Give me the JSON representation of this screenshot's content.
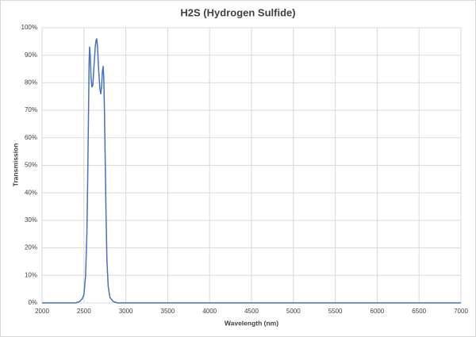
{
  "chart_data": {
    "type": "line",
    "title": "H2S (Hydrogen Sulfide)",
    "xlabel": "Wavelength (nm)",
    "ylabel": "Transmission",
    "x": [
      2000,
      2400,
      2450,
      2480,
      2500,
      2520,
      2535,
      2545,
      2555,
      2562,
      2568,
      2575,
      2585,
      2595,
      2606,
      2620,
      2635,
      2645,
      2653,
      2662,
      2675,
      2690,
      2701,
      2712,
      2720,
      2729,
      2737,
      2745,
      2755,
      2765,
      2775,
      2790,
      2810,
      2850,
      2900,
      7000
    ],
    "series": [
      {
        "name": "H2S",
        "color": "#4472c4",
        "values": [
          0,
          0,
          0.5,
          1.5,
          3,
          10,
          25,
          45,
          70,
          88,
          93,
          90,
          82,
          78.5,
          79,
          86,
          93,
          95.5,
          96,
          93,
          85,
          78,
          76,
          79,
          84,
          86,
          82,
          70,
          50,
          30,
          15,
          6,
          2,
          0.5,
          0,
          0
        ]
      }
    ],
    "xlim": [
      2000,
      7000
    ],
    "xticks": [
      2000,
      2500,
      3000,
      3500,
      4000,
      4500,
      5000,
      5500,
      6000,
      6500,
      7000
    ],
    "ylim": [
      0,
      100
    ],
    "yticks": [
      {
        "value": 0,
        "label": "0%"
      },
      {
        "value": 10,
        "label": "10%"
      },
      {
        "value": 20,
        "label": "20%"
      },
      {
        "value": 30,
        "label": "30%"
      },
      {
        "value": 40,
        "label": "40%"
      },
      {
        "value": 50,
        "label": "50%"
      },
      {
        "value": 60,
        "label": "60%"
      },
      {
        "value": 70,
        "label": "70%"
      },
      {
        "value": 80,
        "label": "80%"
      },
      {
        "value": 90,
        "label": "90%"
      },
      {
        "value": 100,
        "label": "100%"
      }
    ],
    "grid": true
  }
}
